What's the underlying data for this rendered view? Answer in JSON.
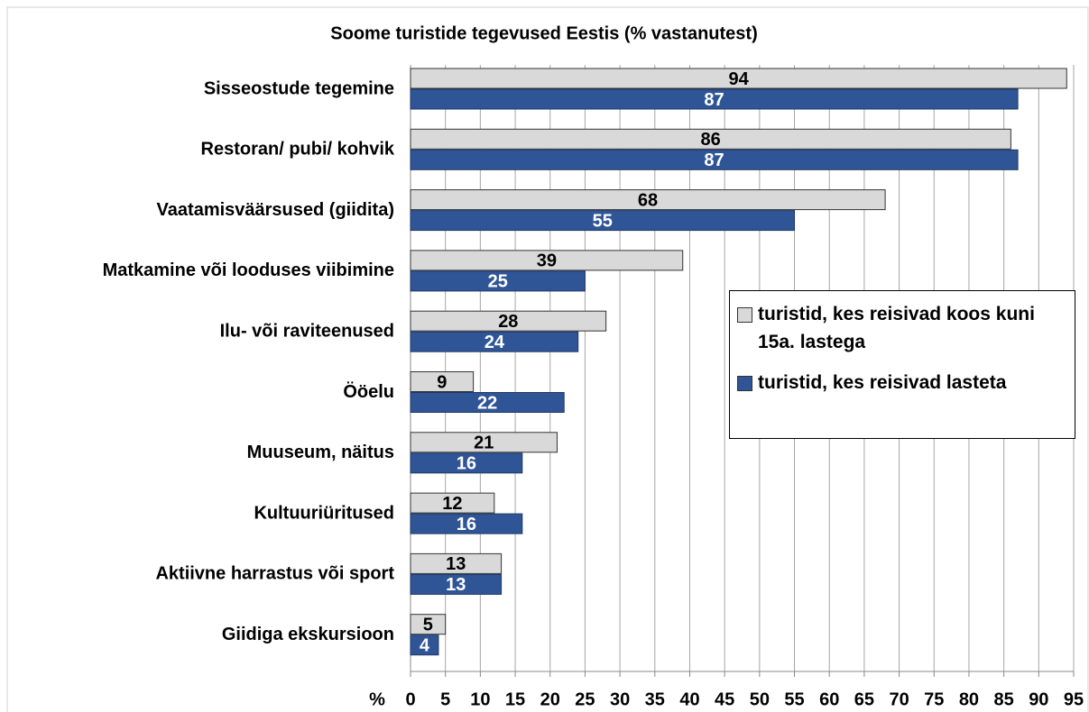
{
  "chart_data": {
    "type": "bar",
    "orientation": "horizontal",
    "title": "Soome turistide tegevused Eestis (% vastanutest)",
    "x_label": "%",
    "categories": [
      "Sisseostude tegemine",
      "Restoran/ pubi/ kohvik",
      "Vaatamisväärsused (giidita)",
      "Matkamine või looduses viibimine",
      "Ilu- või raviteenused",
      "Ööelu",
      "Muuseum, näitus",
      "Kultuuriüritused",
      "Aktiivne harrastus või sport",
      "Giidiga ekskursioon"
    ],
    "series": [
      {
        "name": "turistid, kes reisivad koos kuni 15a. lastega",
        "color": "#d9d9d9",
        "values": [
          94,
          86,
          68,
          39,
          28,
          9,
          21,
          12,
          13,
          5
        ]
      },
      {
        "name": "turistid, kes reisivad lasteta",
        "color": "#2f5597",
        "values": [
          87,
          87,
          55,
          25,
          24,
          22,
          16,
          16,
          13,
          4
        ]
      }
    ],
    "xlim": [
      0,
      95
    ],
    "xticks": [
      0,
      5,
      10,
      15,
      20,
      25,
      30,
      35,
      40,
      45,
      50,
      55,
      60,
      65,
      70,
      75,
      80,
      85,
      90,
      95
    ],
    "grid": true,
    "legend": "right"
  }
}
